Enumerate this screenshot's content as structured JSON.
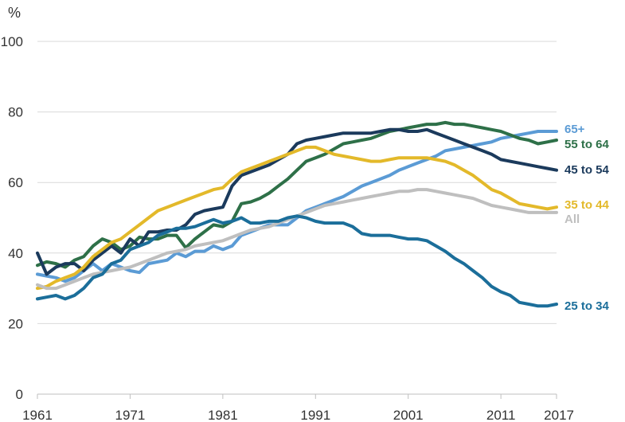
{
  "chart_data": {
    "type": "line",
    "title": "",
    "xlabel": "",
    "ylabel": "%",
    "xlim": [
      1961,
      2017
    ],
    "ylim": [
      0,
      100
    ],
    "x_ticks": [
      1961,
      1971,
      1981,
      1991,
      2001,
      2011,
      2017
    ],
    "x_tick_labels": [
      "1961",
      "1971",
      "1981",
      "1991",
      "2001",
      "2011",
      "2017"
    ],
    "y_ticks": [
      0,
      20,
      40,
      60,
      80,
      100
    ],
    "y_tick_labels": [
      "0",
      "20",
      "40",
      "60",
      "80",
      "100"
    ],
    "grid": true,
    "legend": "end-of-line labels",
    "x": [
      1961,
      1962,
      1963,
      1964,
      1965,
      1966,
      1967,
      1968,
      1969,
      1970,
      1971,
      1972,
      1973,
      1974,
      1975,
      1976,
      1977,
      1978,
      1979,
      1980,
      1981,
      1982,
      1983,
      1984,
      1985,
      1986,
      1987,
      1988,
      1989,
      1990,
      1991,
      1992,
      1993,
      1994,
      1995,
      1996,
      1997,
      1998,
      1999,
      2000,
      2001,
      2002,
      2003,
      2004,
      2005,
      2006,
      2007,
      2008,
      2009,
      2010,
      2011,
      2012,
      2013,
      2014,
      2015,
      2016,
      2017
    ],
    "series": [
      {
        "name": "65+",
        "color": "#5b9bd5",
        "values": [
          34,
          33.5,
          33,
          32,
          33,
          35,
          37,
          35,
          37,
          36,
          35,
          34.5,
          37,
          37.5,
          38,
          40,
          39,
          40.5,
          40.5,
          42,
          41,
          42,
          45,
          46,
          47,
          48,
          48,
          48,
          50,
          52,
          53,
          54,
          55,
          56,
          57.5,
          59,
          60,
          61,
          62,
          63.5,
          64.5,
          65.5,
          66.5,
          67.5,
          69,
          69.5,
          70,
          70.5,
          71,
          71.5,
          72.5,
          73,
          73.5,
          74,
          74.5,
          74.5,
          74.5
        ]
      },
      {
        "name": "55 to 64",
        "color": "#2e7048",
        "values": [
          36.5,
          37.5,
          37,
          36,
          38,
          39,
          42,
          44,
          43,
          41,
          42,
          44.5,
          44,
          44,
          45,
          45,
          41.5,
          44,
          46,
          48,
          47.5,
          49,
          54,
          54.5,
          55.5,
          57,
          59,
          61,
          63.5,
          66,
          67,
          68,
          69.5,
          71,
          71.5,
          72,
          72.5,
          73.5,
          74.5,
          75,
          75.5,
          76,
          76.5,
          76.5,
          77,
          76.5,
          76.5,
          76,
          75.5,
          75,
          74.5,
          73.5,
          72.5,
          72,
          71,
          71.5,
          72
        ]
      },
      {
        "name": "45 to 54",
        "color": "#1b3a5c",
        "values": [
          40,
          34,
          36,
          37,
          37,
          35,
          38,
          40,
          42,
          40,
          44,
          42,
          46,
          46,
          46.5,
          46.5,
          48,
          51,
          52,
          52.5,
          53,
          59,
          62,
          63,
          64,
          65,
          66.5,
          68,
          71,
          72,
          72.5,
          73,
          73.5,
          74,
          74,
          74,
          74,
          74.5,
          75,
          75,
          74.5,
          74.5,
          75,
          74,
          73,
          72,
          71,
          70,
          69,
          68,
          66.5,
          66,
          65.5,
          65,
          64.5,
          64,
          63.5
        ]
      },
      {
        "name": "35 to 44",
        "color": "#e3b92a",
        "values": [
          30,
          30.5,
          32,
          33,
          34,
          36,
          39,
          41,
          43,
          44,
          46,
          48,
          50,
          52,
          53,
          54,
          55,
          56,
          57,
          58,
          58.5,
          61,
          63,
          64,
          65,
          66,
          67,
          68,
          69,
          70,
          70,
          69,
          68,
          67.5,
          67,
          66.5,
          66,
          66,
          66.5,
          67,
          67,
          67,
          67,
          66.5,
          66,
          65,
          63.5,
          62,
          60,
          58,
          57,
          55.5,
          54,
          53.5,
          53,
          52.5,
          53
        ]
      },
      {
        "name": "All",
        "color": "#bfbfbf",
        "values": [
          31,
          30,
          30,
          31,
          32,
          33,
          34,
          34.5,
          35,
          35.5,
          36,
          37,
          38,
          39,
          40,
          40.5,
          41,
          42,
          42.5,
          43,
          43.5,
          44.5,
          45.5,
          46.5,
          47,
          47.5,
          48.5,
          49.5,
          50.5,
          51.5,
          52.5,
          53.5,
          54,
          54.5,
          55,
          55.5,
          56,
          56.5,
          57,
          57.5,
          57.5,
          58,
          58,
          57.5,
          57,
          56.5,
          56,
          55.5,
          54.5,
          53.5,
          53,
          52.5,
          52,
          51.5,
          51.5,
          51.5,
          51.5
        ]
      },
      {
        "name": "25 to 34",
        "color": "#1b6e9a",
        "values": [
          27,
          27.5,
          28,
          27,
          28,
          30,
          33,
          34,
          37,
          38,
          41,
          42,
          43,
          45,
          46,
          47,
          47,
          47.5,
          48.5,
          49.5,
          48.5,
          49,
          50,
          48.5,
          48.5,
          49,
          49,
          50,
          50.5,
          50,
          49,
          48.5,
          48.5,
          48.5,
          47.5,
          45.5,
          45,
          45,
          45,
          44.5,
          44,
          44,
          43.5,
          42,
          40.5,
          38.5,
          37,
          35,
          33,
          30.5,
          29,
          28,
          26,
          25.5,
          25,
          25,
          25.5
        ]
      }
    ]
  },
  "labels": {
    "s65plus": "65+",
    "s55to64": "55 to 64",
    "s45to54": "45 to 54",
    "s35to44": "35 to 44",
    "sall": "All",
    "s25to34": "25 to 34"
  }
}
